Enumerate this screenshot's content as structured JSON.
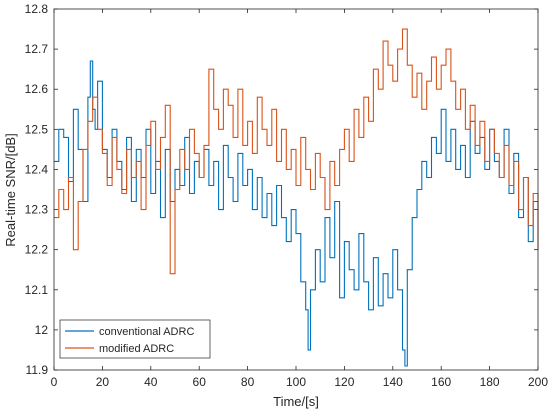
{
  "chart_data": {
    "type": "line",
    "step": true,
    "xlabel": "Time/[s]",
    "ylabel": "Real-time SNR/[dB]",
    "xlim": [
      0,
      200
    ],
    "ylim": [
      11.9,
      12.8
    ],
    "xticks": [
      "0",
      "20",
      "40",
      "60",
      "80",
      "100",
      "120",
      "140",
      "160",
      "180",
      "200"
    ],
    "yticks": [
      "11.9",
      "12",
      "12.1",
      "12.2",
      "12.3",
      "12.4",
      "12.5",
      "12.6",
      "12.7",
      "12.8"
    ],
    "grid": false,
    "legend_position": "bottom-left",
    "series": [
      {
        "name": "conventional ADRC",
        "color": "#0072BD",
        "x": [
          0,
          2,
          4,
          6,
          8,
          10,
          12,
          14,
          15,
          16,
          17,
          18,
          20,
          22,
          24,
          26,
          28,
          30,
          32,
          34,
          36,
          38,
          40,
          42,
          44,
          46,
          48,
          50,
          52,
          54,
          56,
          58,
          60,
          62,
          64,
          66,
          68,
          70,
          72,
          74,
          76,
          78,
          80,
          82,
          84,
          86,
          88,
          90,
          92,
          94,
          96,
          98,
          100,
          102,
          104,
          105,
          106,
          108,
          110,
          112,
          114,
          116,
          118,
          120,
          122,
          124,
          126,
          128,
          130,
          132,
          134,
          136,
          138,
          140,
          142,
          144,
          145,
          146,
          148,
          150,
          152,
          154,
          156,
          158,
          160,
          162,
          164,
          166,
          168,
          170,
          172,
          174,
          176,
          178,
          180,
          182,
          184,
          186,
          188,
          190,
          192,
          194,
          196,
          198,
          200
        ],
        "y": [
          12.42,
          12.5,
          12.48,
          12.37,
          12.55,
          12.45,
          12.32,
          12.58,
          12.67,
          12.55,
          12.5,
          12.62,
          12.45,
          12.38,
          12.5,
          12.42,
          12.35,
          12.48,
          12.32,
          12.45,
          12.38,
          12.5,
          12.34,
          12.42,
          12.28,
          12.45,
          12.32,
          12.4,
          12.36,
          12.48,
          12.34,
          12.42,
          12.38,
          12.45,
          12.36,
          12.42,
          12.3,
          12.46,
          12.38,
          12.32,
          12.44,
          12.36,
          12.4,
          12.3,
          12.38,
          12.28,
          12.34,
          12.26,
          12.36,
          12.28,
          12.22,
          12.3,
          12.24,
          12.12,
          12.05,
          11.95,
          12.1,
          12.2,
          12.12,
          12.28,
          12.18,
          12.32,
          12.08,
          12.22,
          12.15,
          12.1,
          12.24,
          12.12,
          12.05,
          12.18,
          12.06,
          12.14,
          12.08,
          12.2,
          12.1,
          11.95,
          11.91,
          12.15,
          12.28,
          12.35,
          12.42,
          12.38,
          12.48,
          12.44,
          12.55,
          12.42,
          12.5,
          12.4,
          12.46,
          12.38,
          12.52,
          12.44,
          12.48,
          12.4,
          12.5,
          12.42,
          12.38,
          12.5,
          12.34,
          12.44,
          12.28,
          12.38,
          12.22,
          12.32,
          12.3
        ]
      },
      {
        "name": "modified ADRC",
        "color": "#D95319",
        "x": [
          0,
          2,
          4,
          6,
          8,
          10,
          12,
          14,
          16,
          18,
          20,
          22,
          24,
          26,
          28,
          30,
          32,
          34,
          36,
          38,
          40,
          42,
          44,
          46,
          48,
          50,
          52,
          54,
          56,
          58,
          60,
          62,
          64,
          66,
          68,
          70,
          72,
          74,
          76,
          78,
          80,
          82,
          84,
          86,
          88,
          90,
          92,
          94,
          96,
          98,
          100,
          102,
          104,
          106,
          108,
          110,
          112,
          114,
          116,
          118,
          120,
          122,
          124,
          126,
          128,
          130,
          132,
          134,
          136,
          138,
          140,
          142,
          144,
          146,
          148,
          150,
          152,
          154,
          156,
          158,
          160,
          162,
          164,
          166,
          168,
          170,
          172,
          174,
          176,
          178,
          180,
          182,
          184,
          186,
          188,
          190,
          192,
          194,
          196,
          198,
          200
        ],
        "y": [
          12.28,
          12.35,
          12.3,
          12.38,
          12.2,
          12.32,
          12.45,
          12.52,
          12.58,
          12.5,
          12.44,
          12.36,
          12.48,
          12.4,
          12.34,
          12.45,
          12.38,
          12.42,
          12.3,
          12.46,
          12.52,
          12.4,
          12.48,
          12.56,
          12.14,
          12.35,
          12.45,
          12.4,
          12.5,
          12.44,
          12.38,
          12.46,
          12.65,
          12.55,
          12.5,
          12.6,
          12.56,
          12.48,
          12.6,
          12.46,
          12.52,
          12.44,
          12.58,
          12.5,
          12.46,
          12.55,
          12.42,
          12.5,
          12.4,
          12.45,
          12.36,
          12.48,
          12.4,
          12.35,
          12.44,
          12.38,
          12.3,
          12.42,
          12.36,
          12.45,
          12.5,
          12.42,
          12.55,
          12.48,
          12.58,
          12.52,
          12.65,
          12.6,
          12.72,
          12.66,
          12.62,
          12.7,
          12.75,
          12.66,
          12.58,
          12.64,
          12.55,
          12.62,
          12.68,
          12.6,
          12.66,
          12.7,
          12.62,
          12.55,
          12.6,
          12.5,
          12.56,
          12.46,
          12.52,
          12.42,
          12.5,
          12.44,
          12.38,
          12.46,
          12.36,
          12.42,
          12.3,
          12.38,
          12.26,
          12.34,
          12.2
        ]
      }
    ]
  }
}
